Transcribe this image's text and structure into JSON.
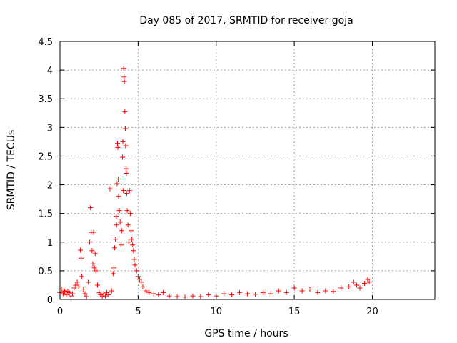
{
  "chart_data": {
    "type": "scatter",
    "title": "Day 085 of 2017, SRMTID for receiver goja",
    "xlabel": "GPS time / hours",
    "ylabel": "SRMTID / TECUs",
    "xlim": [
      0,
      24
    ],
    "ylim": [
      0,
      4.5
    ],
    "x_ticks": [
      0,
      5,
      10,
      15,
      20
    ],
    "x_tick_labels": [
      "0",
      "5",
      "10",
      "15",
      "20"
    ],
    "y_ticks": [
      0,
      0.5,
      1,
      1.5,
      2,
      2.5,
      3,
      3.5,
      4,
      4.5
    ],
    "y_tick_labels": [
      "0",
      "0.5",
      "1",
      "1.5",
      "2",
      "2.5",
      "3",
      "3.5",
      "4",
      "4.5"
    ],
    "grid": true,
    "marker": "+",
    "color": "#ff0000",
    "series": [
      {
        "name": "SRMTID",
        "points": [
          [
            0.0,
            0.12
          ],
          [
            0.1,
            0.18
          ],
          [
            0.2,
            0.1
          ],
          [
            0.3,
            0.15
          ],
          [
            0.4,
            0.08
          ],
          [
            0.5,
            0.14
          ],
          [
            0.6,
            0.12
          ],
          [
            0.7,
            0.06
          ],
          [
            0.8,
            0.1
          ],
          [
            0.9,
            0.2
          ],
          [
            1.0,
            0.25
          ],
          [
            1.1,
            0.3
          ],
          [
            1.2,
            0.22
          ],
          [
            1.3,
            0.86
          ],
          [
            1.35,
            0.72
          ],
          [
            1.4,
            0.4
          ],
          [
            1.5,
            0.18
          ],
          [
            1.6,
            0.1
          ],
          [
            1.7,
            0.05
          ],
          [
            1.8,
            0.3
          ],
          [
            1.9,
            1.0
          ],
          [
            1.95,
            1.6
          ],
          [
            2.0,
            1.17
          ],
          [
            2.05,
            0.85
          ],
          [
            2.1,
            0.62
          ],
          [
            2.15,
            1.17
          ],
          [
            2.2,
            0.55
          ],
          [
            2.25,
            0.8
          ],
          [
            2.3,
            0.5
          ],
          [
            2.4,
            0.25
          ],
          [
            2.5,
            0.12
          ],
          [
            2.6,
            0.08
          ],
          [
            2.7,
            0.05
          ],
          [
            2.8,
            0.1
          ],
          [
            2.9,
            0.06
          ],
          [
            3.0,
            0.12
          ],
          [
            3.1,
            0.08
          ],
          [
            3.2,
            1.93
          ],
          [
            3.3,
            0.15
          ],
          [
            3.4,
            0.45
          ],
          [
            3.45,
            0.55
          ],
          [
            3.5,
            0.9
          ],
          [
            3.55,
            1.05
          ],
          [
            3.6,
            1.45
          ],
          [
            3.62,
            1.3
          ],
          [
            3.65,
            2.02
          ],
          [
            3.68,
            2.72
          ],
          [
            3.7,
            2.65
          ],
          [
            3.72,
            2.1
          ],
          [
            3.75,
            1.8
          ],
          [
            3.8,
            1.55
          ],
          [
            3.85,
            1.35
          ],
          [
            3.9,
            0.95
          ],
          [
            3.95,
            1.2
          ],
          [
            4.0,
            2.48
          ],
          [
            4.02,
            2.75
          ],
          [
            4.05,
            1.9
          ],
          [
            4.08,
            4.03
          ],
          [
            4.1,
            3.88
          ],
          [
            4.12,
            3.8
          ],
          [
            4.15,
            3.27
          ],
          [
            4.18,
            2.98
          ],
          [
            4.2,
            2.68
          ],
          [
            4.22,
            2.28
          ],
          [
            4.25,
            2.2
          ],
          [
            4.28,
            1.85
          ],
          [
            4.3,
            1.55
          ],
          [
            4.35,
            1.3
          ],
          [
            4.4,
            1.0
          ],
          [
            4.45,
            1.9
          ],
          [
            4.5,
            1.5
          ],
          [
            4.55,
            1.2
          ],
          [
            4.6,
            1.05
          ],
          [
            4.65,
            0.95
          ],
          [
            4.7,
            0.85
          ],
          [
            4.75,
            0.7
          ],
          [
            4.8,
            0.6
          ],
          [
            4.9,
            0.5
          ],
          [
            5.0,
            0.4
          ],
          [
            5.1,
            0.35
          ],
          [
            5.2,
            0.3
          ],
          [
            5.3,
            0.22
          ],
          [
            5.5,
            0.15
          ],
          [
            5.7,
            0.12
          ],
          [
            6.0,
            0.1
          ],
          [
            6.3,
            0.08
          ],
          [
            6.6,
            0.12
          ],
          [
            7.0,
            0.06
          ],
          [
            7.5,
            0.05
          ],
          [
            8.0,
            0.04
          ],
          [
            8.5,
            0.06
          ],
          [
            9.0,
            0.05
          ],
          [
            9.5,
            0.08
          ],
          [
            10.0,
            0.06
          ],
          [
            10.5,
            0.1
          ],
          [
            11.0,
            0.08
          ],
          [
            11.5,
            0.12
          ],
          [
            12.0,
            0.1
          ],
          [
            12.5,
            0.09
          ],
          [
            13.0,
            0.12
          ],
          [
            13.5,
            0.1
          ],
          [
            14.0,
            0.15
          ],
          [
            14.5,
            0.12
          ],
          [
            15.0,
            0.2
          ],
          [
            15.5,
            0.15
          ],
          [
            16.0,
            0.18
          ],
          [
            16.5,
            0.12
          ],
          [
            17.0,
            0.15
          ],
          [
            17.5,
            0.14
          ],
          [
            18.0,
            0.2
          ],
          [
            18.5,
            0.22
          ],
          [
            18.8,
            0.3
          ],
          [
            19.0,
            0.25
          ],
          [
            19.2,
            0.2
          ],
          [
            19.5,
            0.28
          ],
          [
            19.7,
            0.35
          ],
          [
            19.8,
            0.3
          ]
        ]
      }
    ]
  }
}
